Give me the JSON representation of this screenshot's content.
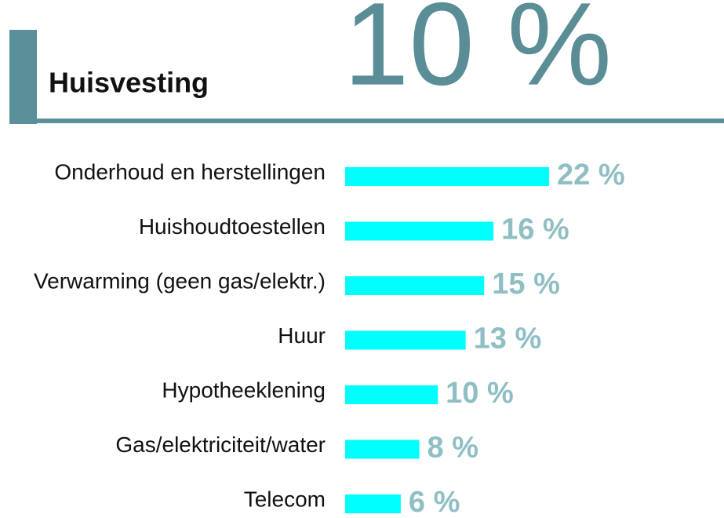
{
  "chart_data": {
    "type": "hbar",
    "title": "Huisvesting",
    "headline": "10 %",
    "categories": [
      "Onderhoud en herstellingen",
      "Huishoudtoestellen",
      "Verwarming (geen gas/elektr.)",
      "Huur",
      "Hypotheeklening",
      "Gas/elektriciteit/water",
      "Telecom"
    ],
    "values": [
      22,
      16,
      15,
      13,
      10,
      8,
      6
    ],
    "value_labels": [
      "22 %",
      "16 %",
      "15 %",
      "13 %",
      "10 %",
      "8 %",
      "6 %"
    ],
    "color": "#00ffff"
  }
}
